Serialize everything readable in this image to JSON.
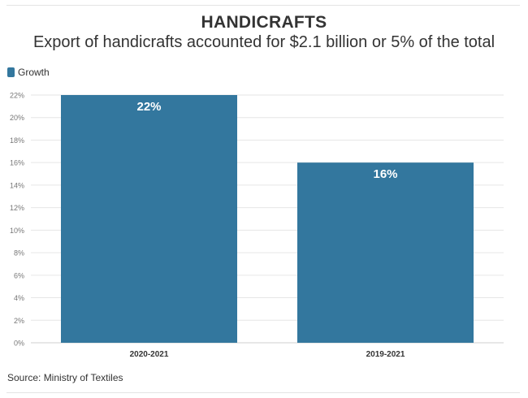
{
  "header": {
    "title": "HANDICRAFTS",
    "subtitle": "Export of handicrafts accounted for $2.1 billion or 5% of the total"
  },
  "legend": {
    "label": "Growth",
    "color": "#33779e"
  },
  "footer": {
    "source": "Source: Ministry of Textiles"
  },
  "chart_data": {
    "type": "bar",
    "title": "HANDICRAFTS",
    "subtitle": "Export of handicrafts accounted for $2.1 billion or 5% of the total",
    "categories": [
      "2020-2021",
      "2019-2021"
    ],
    "series": [
      {
        "name": "Growth",
        "values": [
          22,
          16
        ],
        "color": "#33779e"
      }
    ],
    "data_labels": [
      "22%",
      "16%"
    ],
    "ylim": [
      0,
      22
    ],
    "yticks": [
      "0%",
      "2%",
      "4%",
      "6%",
      "8%",
      "10%",
      "12%",
      "14%",
      "16%",
      "18%",
      "20%",
      "22%"
    ],
    "xlabel": "",
    "ylabel": "",
    "grid": true,
    "legend_position": "top-left"
  }
}
